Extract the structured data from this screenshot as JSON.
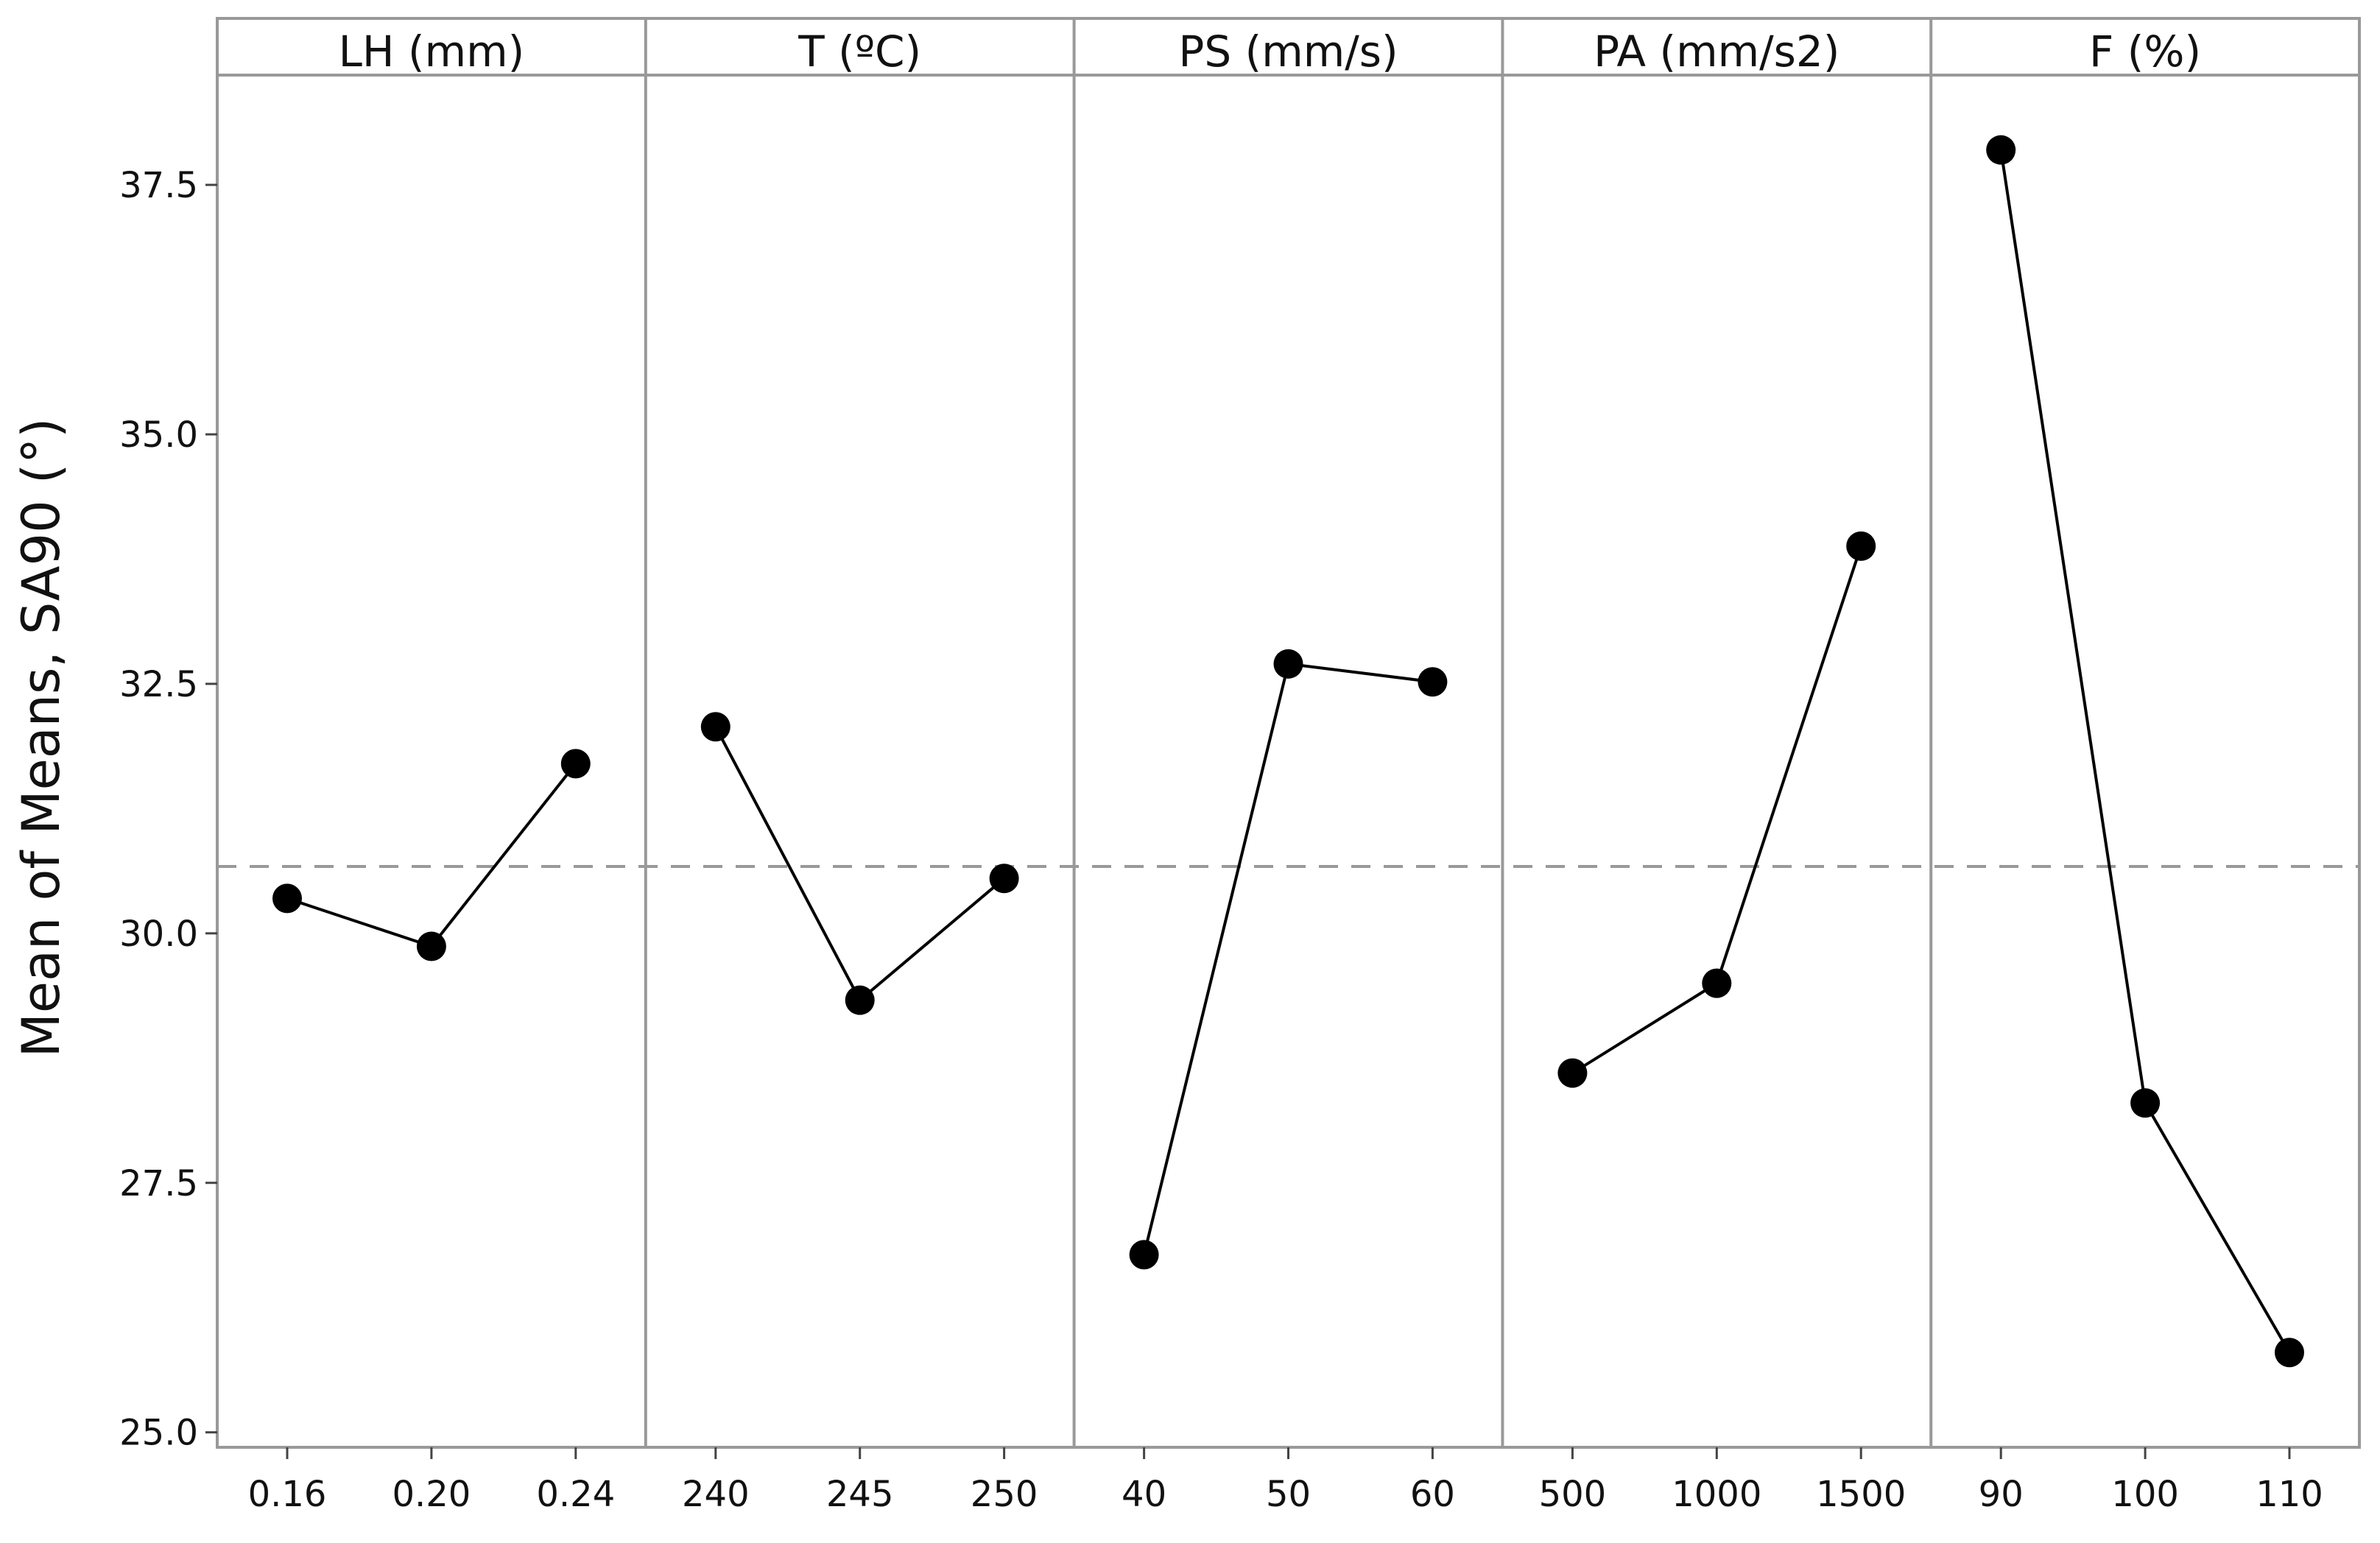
{
  "chart_data": {
    "type": "line",
    "title": "",
    "ylabel": "Mean of Means, SA90 (°)",
    "ylim": [
      24.85,
      38.6
    ],
    "yticks": [
      25.0,
      27.5,
      30.0,
      32.5,
      35.0,
      37.5
    ],
    "ytick_labels": [
      "25.0",
      "27.5",
      "30.0",
      "32.5",
      "35.0",
      "37.5"
    ],
    "overall_mean": 30.67,
    "mean_line_color": "#999999",
    "point_color": "#000000",
    "panels": [
      {
        "name": "LH (mm)",
        "categories": [
          "0.16",
          "0.20",
          "0.24"
        ],
        "values": [
          30.35,
          29.87,
          31.7
        ]
      },
      {
        "name": "T (ºC)",
        "categories": [
          "240",
          "245",
          "250"
        ],
        "values": [
          32.07,
          29.33,
          30.55
        ]
      },
      {
        "name": "PS (mm/s)",
        "categories": [
          "40",
          "50",
          "60"
        ],
        "values": [
          26.78,
          32.7,
          32.52
        ]
      },
      {
        "name": "PA (mm/s2)",
        "categories": [
          "500",
          "1000",
          "1500"
        ],
        "values": [
          28.6,
          29.5,
          33.88
        ]
      },
      {
        "name": "F (%)",
        "categories": [
          "90",
          "100",
          "110"
        ],
        "values": [
          37.85,
          28.3,
          25.8
        ]
      }
    ]
  }
}
